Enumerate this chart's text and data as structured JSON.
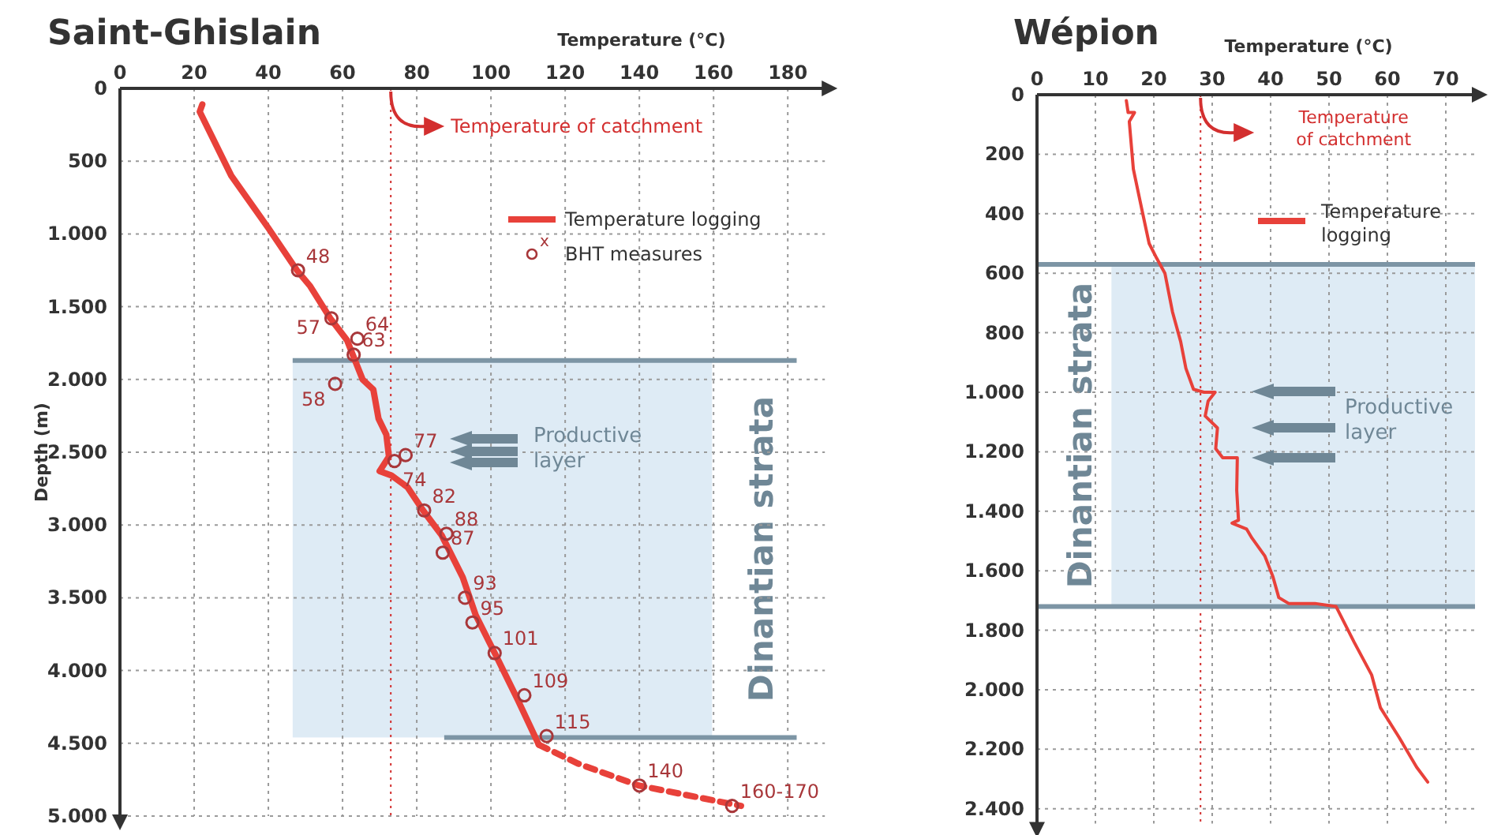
{
  "chart_data": [
    {
      "type": "line",
      "title": "Saint-Ghislain",
      "xlabel": "Temperature (°C)",
      "ylabel": "Depth (m)",
      "xlim": [
        0,
        190
      ],
      "xticks": [
        0,
        20,
        40,
        60,
        80,
        100,
        120,
        140,
        160,
        180
      ],
      "ylim": [
        5000,
        0
      ],
      "yticks": [
        0,
        500,
        {
          "value": 1000,
          "label": "1.000"
        },
        {
          "value": 1500,
          "label": "1.500"
        },
        {
          "value": 2000,
          "label": "2.000"
        },
        {
          "value": 2500,
          "label": "2.500"
        },
        {
          "value": 3000,
          "label": "3.000"
        },
        {
          "value": 3500,
          "label": "3.500"
        },
        {
          "value": 4000,
          "label": "4.000"
        },
        {
          "value": 4500,
          "label": "4.500"
        },
        {
          "value": 5000,
          "label": "5.000"
        }
      ],
      "grid": true,
      "legend": "top right",
      "series": [
        {
          "name": "Temperature logging",
          "color": "#e8413a",
          "line_style": "solid",
          "x": [
            22.2,
            21.5,
            30,
            40,
            47.7,
            51.3,
            56.7,
            61.2,
            62.9,
            65.4,
            68.3,
            69.7,
            71.8,
            72.5,
            70,
            73.2,
            77.5,
            81.7,
            86.7,
            92.4,
            95.9,
            101.6,
            107.2,
            112.9
          ],
          "values": [
            110,
            160,
            600,
            960,
            1250,
            1360,
            1580,
            1730,
            1840,
            2000,
            2070,
            2270,
            2380,
            2530,
            2630,
            2660,
            2740,
            2900,
            3070,
            3360,
            3620,
            3910,
            4200,
            4510
          ]
        },
        {
          "color": "#e8413a",
          "line_style": "dashed",
          "x": [
            112.9,
            123.5,
            139.8,
            167.4
          ],
          "values": [
            4510,
            4640,
            4790,
            4930
          ]
        },
        {
          "name": "BHT measures",
          "type": "scatter",
          "color": "#a8373a",
          "marker": "circle",
          "x": [
            48,
            57,
            64,
            63,
            58,
            77,
            74,
            82,
            88,
            87,
            93,
            95,
            101,
            109,
            115,
            140,
            165
          ],
          "values": [
            1250,
            1580,
            1720,
            1830,
            2030,
            2520,
            2560,
            2900,
            3060,
            3190,
            3500,
            3670,
            3880,
            4170,
            4450,
            4790,
            4930
          ]
        }
      ],
      "ref_lines": [
        {
          "axis": "x",
          "value": 73,
          "label": "Temperature of catchment",
          "color": "#d32f2f",
          "line_style": "dotted"
        },
        {
          "axis": "y",
          "value": 1870,
          "color": "#7d95a5"
        },
        {
          "axis": "y",
          "value": 4460,
          "color": "#7d95a5"
        }
      ],
      "bands": [
        {
          "axis": "y",
          "from": 1870,
          "to": 4460,
          "label": "Dinantian strata",
          "color": "#deebf5"
        }
      ],
      "annotations": [
        "Productive layer",
        "x",
        {
          "text": "48",
          "x": 48,
          "y": 1250
        },
        {
          "text": "57",
          "x": 57,
          "y": 1580
        },
        {
          "text": "64",
          "x": 64,
          "y": 1720
        },
        {
          "text": "63",
          "x": 63,
          "y": 1830
        },
        {
          "text": "58",
          "x": 58,
          "y": 2030
        },
        {
          "text": "77",
          "x": 77,
          "y": 2520
        },
        {
          "text": "74",
          "x": 74,
          "y": 2560
        },
        {
          "text": "82",
          "x": 82,
          "y": 2900
        },
        {
          "text": "88",
          "x": 88,
          "y": 3060
        },
        {
          "text": "87",
          "x": 87,
          "y": 3190
        },
        {
          "text": "93",
          "x": 93,
          "y": 3500
        },
        {
          "text": "95",
          "x": 95,
          "y": 3670
        },
        {
          "text": "101",
          "x": 101,
          "y": 3880
        },
        {
          "text": "109",
          "x": 109,
          "y": 4170
        },
        {
          "text": "115",
          "x": 115,
          "y": 4450
        },
        {
          "text": "140",
          "x": 140,
          "y": 4790
        },
        {
          "text": "160-170",
          "x": 165,
          "y": 4930
        }
      ]
    },
    {
      "type": "line",
      "title": "Wépion",
      "xlabel": "Temperature (°C)",
      "xlim": [
        0,
        75
      ],
      "xticks": [
        0,
        10,
        20,
        30,
        40,
        50,
        60,
        70
      ],
      "ylim": [
        2450,
        0
      ],
      "yticks": [
        0,
        200,
        400,
        600,
        800,
        {
          "value": 1000,
          "label": "1.000"
        },
        {
          "value": 1200,
          "label": "1.200"
        },
        {
          "value": 1400,
          "label": "1.400"
        },
        {
          "value": 1600,
          "label": "1.600"
        },
        {
          "value": 1800,
          "label": "1.800"
        },
        {
          "value": 2000,
          "label": "2.000"
        },
        {
          "value": 2200,
          "label": "2.200"
        },
        {
          "value": 2400,
          "label": "2.400"
        }
      ],
      "grid": true,
      "legend": "top right",
      "series": [
        {
          "name": "Temperature logging",
          "color": "#e8413a",
          "line_style": "solid",
          "x": [
            15.3,
            15.6,
            16.7,
            15.8,
            16.5,
            18,
            19.2,
            20.5,
            21.9,
            23.2,
            24.6,
            25.5,
            26.8,
            28.6,
            30.5,
            29.3,
            28.8,
            30.9,
            30.6,
            31.8,
            34.3,
            34.2,
            34.5,
            33.4,
            35.9,
            36.8,
            39,
            40.4,
            41.4,
            43.1,
            47.6,
            51.2,
            54.3,
            57.3,
            58.8,
            62,
            65,
            66.9
          ],
          "values": [
            20,
            60,
            60,
            90,
            250,
            390,
            500,
            550,
            600,
            730,
            830,
            920,
            990,
            1000,
            1000,
            1030,
            1080,
            1120,
            1190,
            1220,
            1220,
            1330,
            1430,
            1440,
            1460,
            1490,
            1550,
            1620,
            1690,
            1710,
            1710,
            1720,
            1840,
            1950,
            2060,
            2160,
            2260,
            2310
          ]
        }
      ],
      "ref_lines": [
        {
          "axis": "x",
          "value": 28,
          "label": "Temperature of catchment",
          "color": "#d32f2f",
          "line_style": "dotted"
        },
        {
          "axis": "y",
          "value": 570,
          "color": "#7d95a5"
        },
        {
          "axis": "y",
          "value": 1720,
          "color": "#7d95a5"
        }
      ],
      "bands": [
        {
          "axis": "y",
          "from": 570,
          "to": 1720,
          "label": "Dinantian strata",
          "color": "#deebf5"
        }
      ],
      "annotations": [
        "Productive layer"
      ]
    }
  ]
}
